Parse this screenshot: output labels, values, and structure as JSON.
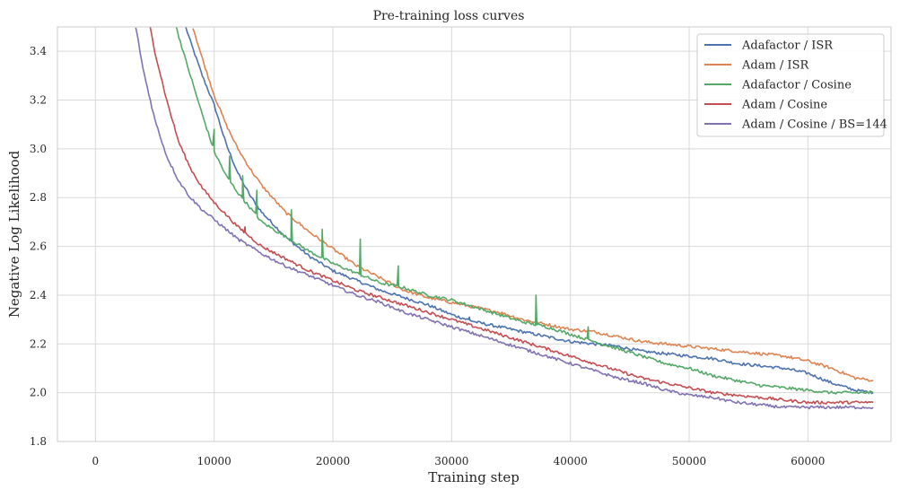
{
  "chart_data": {
    "type": "line",
    "title": "Pre-training loss curves",
    "xlabel": "Training step",
    "ylabel": "Negative Log Likelihood",
    "xlim": [
      -3200,
      67000
    ],
    "ylim": [
      1.8,
      3.5
    ],
    "xticks": [
      0,
      10000,
      20000,
      30000,
      40000,
      50000,
      60000
    ],
    "yticks": [
      1.8,
      2.0,
      2.2,
      2.4,
      2.6,
      2.8,
      3.0,
      3.2,
      3.4
    ],
    "ytick_labels": [
      "1.8",
      "2.0",
      "2.2",
      "2.4",
      "2.6",
      "2.8",
      "3.0",
      "3.2",
      "3.4"
    ],
    "grid": true,
    "legend_position": "top-right",
    "series": [
      {
        "name": "Adafactor / ISR",
        "color": "#4c72b0",
        "x": [
          7600,
          8000,
          9000,
          10000,
          11000,
          12000,
          13000,
          14000,
          16000,
          18000,
          20000,
          22000,
          24000,
          26000,
          28000,
          30000,
          32000,
          34000,
          36000,
          38000,
          40000,
          42000,
          44000,
          46000,
          48000,
          50000,
          52000,
          54000,
          56000,
          58000,
          60000,
          62000,
          64000,
          65500
        ],
        "y": [
          3.5,
          3.44,
          3.3,
          3.18,
          3.02,
          2.9,
          2.81,
          2.74,
          2.64,
          2.56,
          2.5,
          2.46,
          2.42,
          2.39,
          2.36,
          2.32,
          2.29,
          2.27,
          2.25,
          2.23,
          2.21,
          2.2,
          2.19,
          2.17,
          2.16,
          2.15,
          2.14,
          2.12,
          2.11,
          2.1,
          2.08,
          2.04,
          2.01,
          2.0
        ]
      },
      {
        "name": "Adam / ISR",
        "color": "#dd8452",
        "x": [
          8200,
          9000,
          10000,
          11000,
          12000,
          13000,
          14000,
          16000,
          18000,
          20000,
          22000,
          24000,
          26000,
          28000,
          30000,
          32000,
          34000,
          36000,
          38000,
          40000,
          42000,
          44000,
          46000,
          48000,
          50000,
          52000,
          54000,
          56000,
          58000,
          60000,
          62000,
          64000,
          65500
        ],
        "y": [
          3.5,
          3.37,
          3.22,
          3.1,
          3.0,
          2.92,
          2.85,
          2.74,
          2.66,
          2.59,
          2.52,
          2.47,
          2.42,
          2.39,
          2.37,
          2.35,
          2.33,
          2.3,
          2.28,
          2.26,
          2.25,
          2.23,
          2.21,
          2.2,
          2.19,
          2.18,
          2.17,
          2.16,
          2.15,
          2.13,
          2.1,
          2.06,
          2.05
        ]
      },
      {
        "name": "Adafactor / Cosine",
        "color": "#55a868",
        "x": [
          6800,
          7500,
          8000,
          9000,
          10000,
          11000,
          12000,
          13000,
          14000,
          16000,
          18000,
          20000,
          22000,
          24000,
          26000,
          28000,
          30000,
          32000,
          34000,
          36000,
          38000,
          40000,
          42000,
          44000,
          46000,
          48000,
          50000,
          52000,
          54000,
          56000,
          58000,
          60000,
          62000,
          64000,
          65500
        ],
        "y": [
          3.5,
          3.38,
          3.3,
          3.14,
          2.99,
          2.89,
          2.82,
          2.76,
          2.7,
          2.64,
          2.58,
          2.53,
          2.49,
          2.45,
          2.43,
          2.4,
          2.38,
          2.35,
          2.32,
          2.29,
          2.27,
          2.24,
          2.21,
          2.18,
          2.15,
          2.12,
          2.1,
          2.07,
          2.05,
          2.03,
          2.02,
          2.01,
          2.0,
          2.0,
          2.0
        ]
      },
      {
        "name": "Adam / Cosine",
        "color": "#c44e52",
        "x": [
          4600,
          5000,
          6000,
          7000,
          8000,
          9000,
          10000,
          11000,
          12000,
          13000,
          14000,
          16000,
          18000,
          20000,
          22000,
          24000,
          26000,
          28000,
          30000,
          32000,
          34000,
          36000,
          38000,
          40000,
          42000,
          44000,
          46000,
          48000,
          50000,
          52000,
          54000,
          56000,
          58000,
          60000,
          62000,
          64000,
          65500
        ],
        "y": [
          3.5,
          3.4,
          3.2,
          3.03,
          2.92,
          2.84,
          2.78,
          2.73,
          2.68,
          2.64,
          2.6,
          2.55,
          2.5,
          2.46,
          2.42,
          2.39,
          2.36,
          2.33,
          2.3,
          2.27,
          2.24,
          2.21,
          2.18,
          2.15,
          2.12,
          2.09,
          2.06,
          2.04,
          2.02,
          2.0,
          1.99,
          1.98,
          1.97,
          1.96,
          1.96,
          1.96,
          1.96
        ]
      },
      {
        "name": "Adam / Cosine / BS=144",
        "color": "#8172b3",
        "x": [
          3400,
          4000,
          5000,
          6000,
          7000,
          8000,
          9000,
          10000,
          11000,
          12000,
          13000,
          14000,
          16000,
          18000,
          20000,
          22000,
          24000,
          26000,
          28000,
          30000,
          32000,
          34000,
          36000,
          38000,
          40000,
          42000,
          44000,
          46000,
          48000,
          50000,
          52000,
          54000,
          56000,
          58000,
          60000,
          62000,
          64000,
          65500
        ],
        "y": [
          3.5,
          3.33,
          3.12,
          2.97,
          2.87,
          2.8,
          2.75,
          2.71,
          2.67,
          2.63,
          2.6,
          2.57,
          2.52,
          2.48,
          2.44,
          2.4,
          2.37,
          2.33,
          2.3,
          2.27,
          2.24,
          2.21,
          2.18,
          2.15,
          2.12,
          2.09,
          2.06,
          2.04,
          2.01,
          1.99,
          1.98,
          1.96,
          1.95,
          1.94,
          1.94,
          1.94,
          1.94,
          1.94
        ]
      }
    ],
    "spikes": [
      {
        "series": 2,
        "x": 10000,
        "y": 3.08
      },
      {
        "series": 2,
        "x": 11300,
        "y": 2.97
      },
      {
        "series": 2,
        "x": 12400,
        "y": 2.89
      },
      {
        "series": 2,
        "x": 13600,
        "y": 2.83
      },
      {
        "series": 2,
        "x": 16500,
        "y": 2.75
      },
      {
        "series": 2,
        "x": 19100,
        "y": 2.67
      },
      {
        "series": 2,
        "x": 22300,
        "y": 2.63
      },
      {
        "series": 2,
        "x": 25500,
        "y": 2.52
      },
      {
        "series": 2,
        "x": 37100,
        "y": 2.4
      },
      {
        "series": 2,
        "x": 41500,
        "y": 2.27
      },
      {
        "series": 3,
        "x": 12600,
        "y": 2.68
      },
      {
        "series": 0,
        "x": 31500,
        "y": 2.31
      }
    ]
  }
}
